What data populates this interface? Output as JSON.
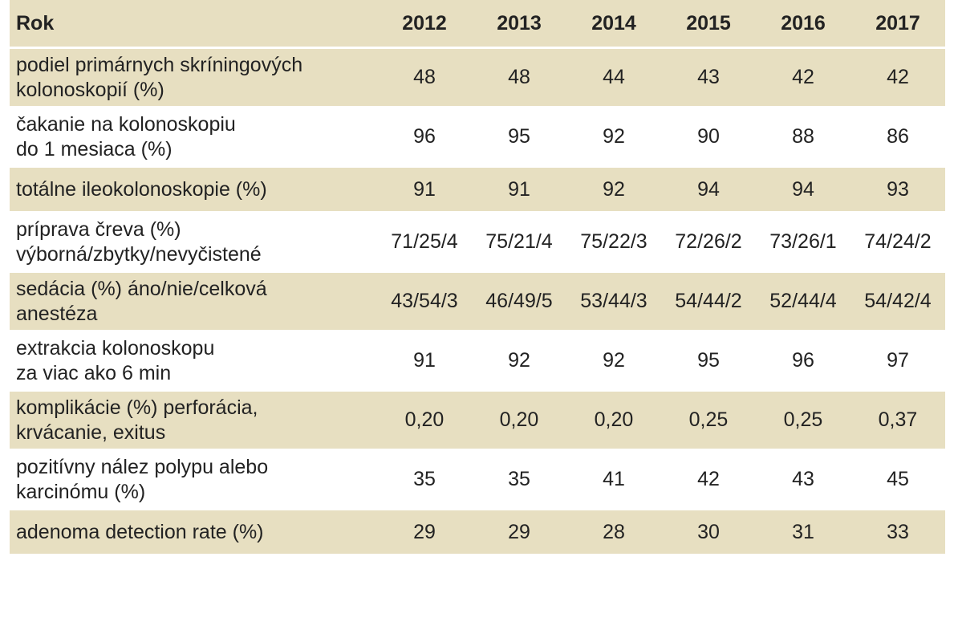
{
  "table": {
    "header": [
      "Rok",
      "2012",
      "2013",
      "2014",
      "2015",
      "2016",
      "2017"
    ],
    "rows": [
      {
        "label": [
          "podiel primárnych skríningových",
          "kolonoskopií (%)"
        ],
        "values": [
          "48",
          "48",
          "44",
          "43",
          "42",
          "42"
        ]
      },
      {
        "label": [
          "čakanie na kolonoskopiu",
          "do 1 mesiaca (%)"
        ],
        "values": [
          "96",
          "95",
          "92",
          "90",
          "88",
          "86"
        ]
      },
      {
        "label": [
          "totálne ileokolonoskopie (%)"
        ],
        "values": [
          "91",
          "91",
          "92",
          "94",
          "94",
          "93"
        ]
      },
      {
        "label": [
          "príprava čreva (%)",
          "výborná/zbytky/nevyčistené"
        ],
        "values": [
          "71/25/4",
          "75/21/4",
          "75/22/3",
          "72/26/2",
          "73/26/1",
          "74/24/2"
        ]
      },
      {
        "label": [
          "sedácia (%) áno/nie/celková",
          "anestéza"
        ],
        "values": [
          "43/54/3",
          "46/49/5",
          "53/44/3",
          "54/44/2",
          "52/44/4",
          "54/42/4"
        ]
      },
      {
        "label": [
          "extrakcia kolonoskopu",
          "za viac ako 6 min"
        ],
        "values": [
          "91",
          "92",
          "92",
          "95",
          "96",
          "97"
        ]
      },
      {
        "label": [
          "komplikácie (%) perforácia,",
          "krvácanie, exitus"
        ],
        "values": [
          "0,20",
          "0,20",
          "0,20",
          "0,25",
          "0,25",
          "0,37"
        ]
      },
      {
        "label": [
          "pozitívny nález polypu alebo",
          "karcinómu (%)"
        ],
        "values": [
          "35",
          "35",
          "41",
          "42",
          "43",
          "45"
        ]
      },
      {
        "label": [
          "adenoma detection rate (%)"
        ],
        "values": [
          "29",
          "29",
          "28",
          "30",
          "31",
          "33"
        ]
      }
    ]
  },
  "colors": {
    "stripe": "#e7dfc1",
    "text": "#222222",
    "background": "#ffffff"
  }
}
